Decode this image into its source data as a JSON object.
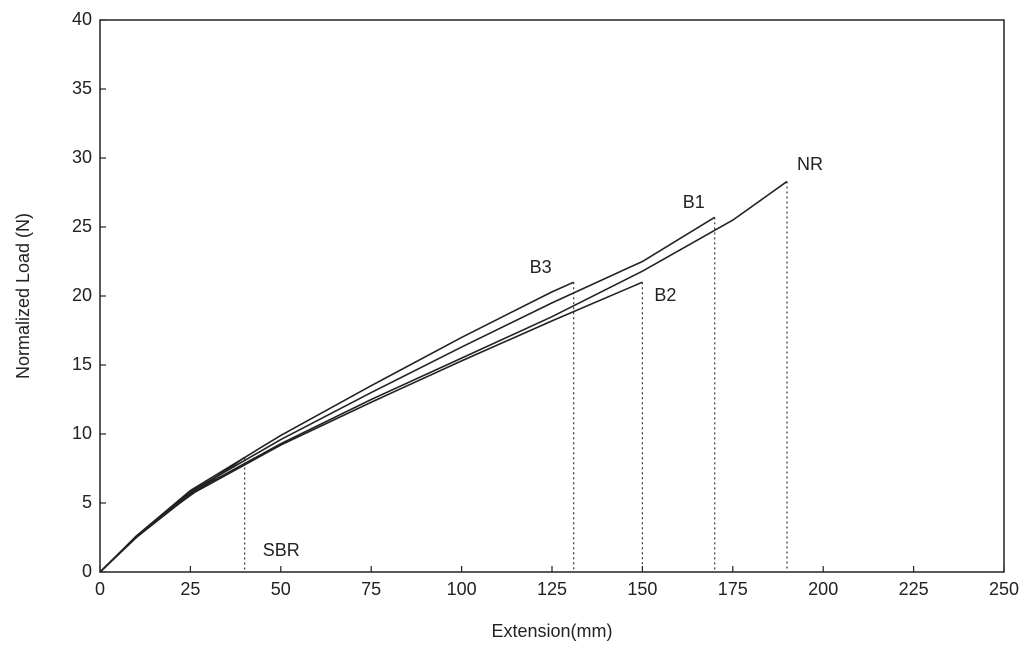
{
  "chart_data": {
    "type": "line",
    "xlabel": "Extension(mm)",
    "ylabel": "Normalized Load (N)",
    "xlim": [
      0,
      250
    ],
    "ylim": [
      0,
      40
    ],
    "xticks": [
      0,
      25,
      50,
      75,
      100,
      125,
      150,
      175,
      200,
      225,
      250
    ],
    "yticks": [
      0,
      5,
      10,
      15,
      20,
      25,
      30,
      35,
      40
    ],
    "series": [
      {
        "name": "SBR",
        "color": "#222222",
        "x": [
          0,
          10,
          20,
          30,
          40
        ],
        "values": [
          0,
          2.5,
          4.6,
          6.5,
          8.3
        ]
      },
      {
        "name": "B3",
        "color": "#222222",
        "x": [
          0,
          10,
          25,
          50,
          75,
          100,
          125,
          131
        ],
        "values": [
          0,
          2.6,
          5.9,
          9.9,
          13.5,
          17,
          20.3,
          21
        ]
      },
      {
        "name": "B2",
        "color": "#222222",
        "x": [
          0,
          10,
          25,
          50,
          75,
          100,
          125,
          150
        ],
        "values": [
          0,
          2.5,
          5.6,
          9.2,
          12.3,
          15.3,
          18.2,
          21
        ]
      },
      {
        "name": "B1",
        "color": "#222222",
        "x": [
          0,
          10,
          25,
          50,
          75,
          100,
          125,
          150,
          170
        ],
        "values": [
          0,
          2.5,
          5.8,
          9.6,
          13,
          16.3,
          19.5,
          22.5,
          25.7
        ]
      },
      {
        "name": "NR",
        "color": "#222222",
        "x": [
          0,
          10,
          25,
          50,
          75,
          100,
          125,
          150,
          175,
          190
        ],
        "values": [
          0,
          2.5,
          5.7,
          9.3,
          12.5,
          15.5,
          18.5,
          21.8,
          25.5,
          28.3
        ]
      }
    ]
  }
}
